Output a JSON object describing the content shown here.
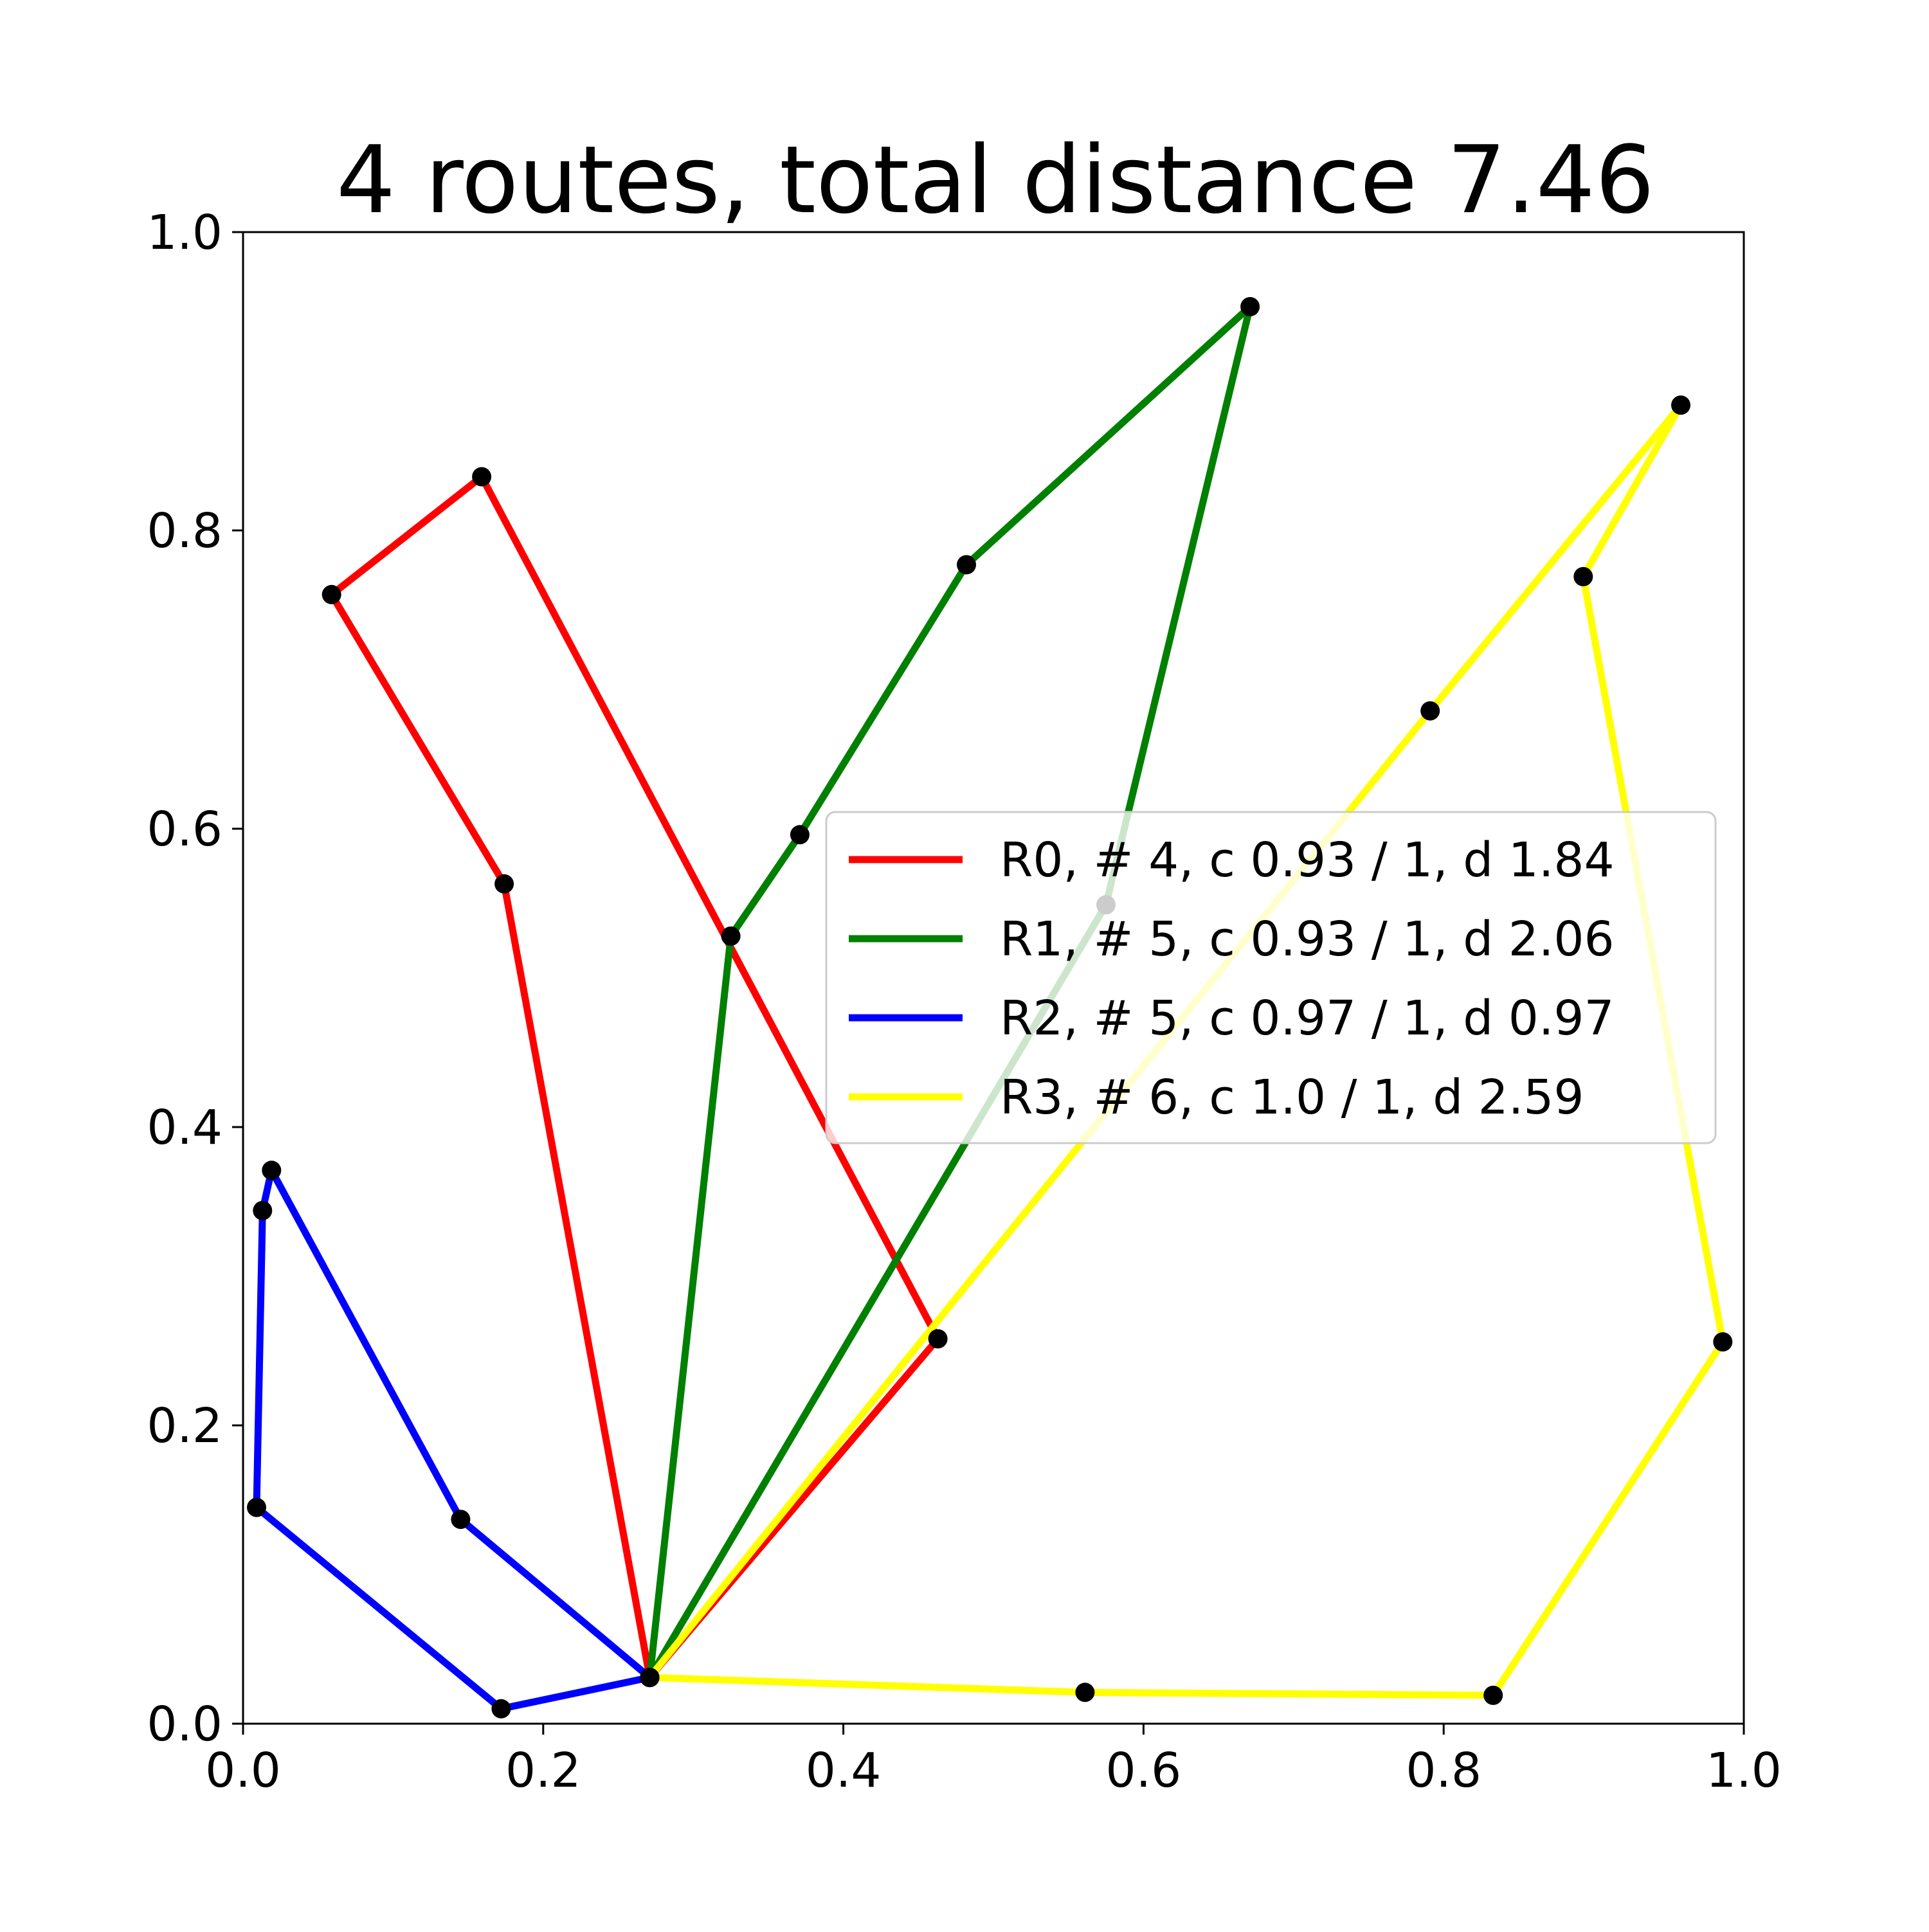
{
  "chart_data": {
    "type": "line",
    "title": "4 routes, total distance 7.46",
    "xlabel": "",
    "ylabel": "",
    "xlim": [
      0.0,
      1.0
    ],
    "ylim": [
      0.0,
      1.0
    ],
    "x_ticks": [
      "0.0",
      "0.2",
      "0.4",
      "0.6",
      "0.8",
      "1.0"
    ],
    "y_ticks": [
      "0.0",
      "0.2",
      "0.4",
      "0.6",
      "0.8",
      "1.0"
    ],
    "grid": false,
    "legend_position": "center-right",
    "marker_color": "#000000",
    "series": [
      {
        "name": "R0, # 4, c 0.93 / 1, d 1.84",
        "color": "#ff0000",
        "x": [
          0.271,
          0.174,
          0.059,
          0.159,
          0.463,
          0.271
        ],
        "y": [
          0.031,
          0.563,
          0.757,
          0.836,
          0.258,
          0.031
        ]
      },
      {
        "name": "R1, # 5, c 0.93 / 1, d 2.06",
        "color": "#008000",
        "x": [
          0.271,
          0.325,
          0.371,
          0.482,
          0.671,
          0.575,
          0.271
        ],
        "y": [
          0.031,
          0.528,
          0.596,
          0.777,
          0.95,
          0.549,
          0.031
        ]
      },
      {
        "name": "R2, # 5, c 0.97 / 1, d 0.97",
        "color": "#0000ff",
        "x": [
          0.271,
          0.145,
          0.019,
          0.013,
          0.009,
          0.172,
          0.271
        ],
        "y": [
          0.031,
          0.137,
          0.371,
          0.344,
          0.145,
          0.01,
          0.031
        ]
      },
      {
        "name": "R3, # 6, c 1.0 / 1, d 2.59",
        "color": "#ffff00",
        "x": [
          0.271,
          0.791,
          0.958,
          0.893,
          0.986,
          0.833,
          0.561,
          0.271
        ],
        "y": [
          0.031,
          0.679,
          0.884,
          0.769,
          0.256,
          0.019,
          0.021,
          0.031
        ]
      }
    ]
  }
}
